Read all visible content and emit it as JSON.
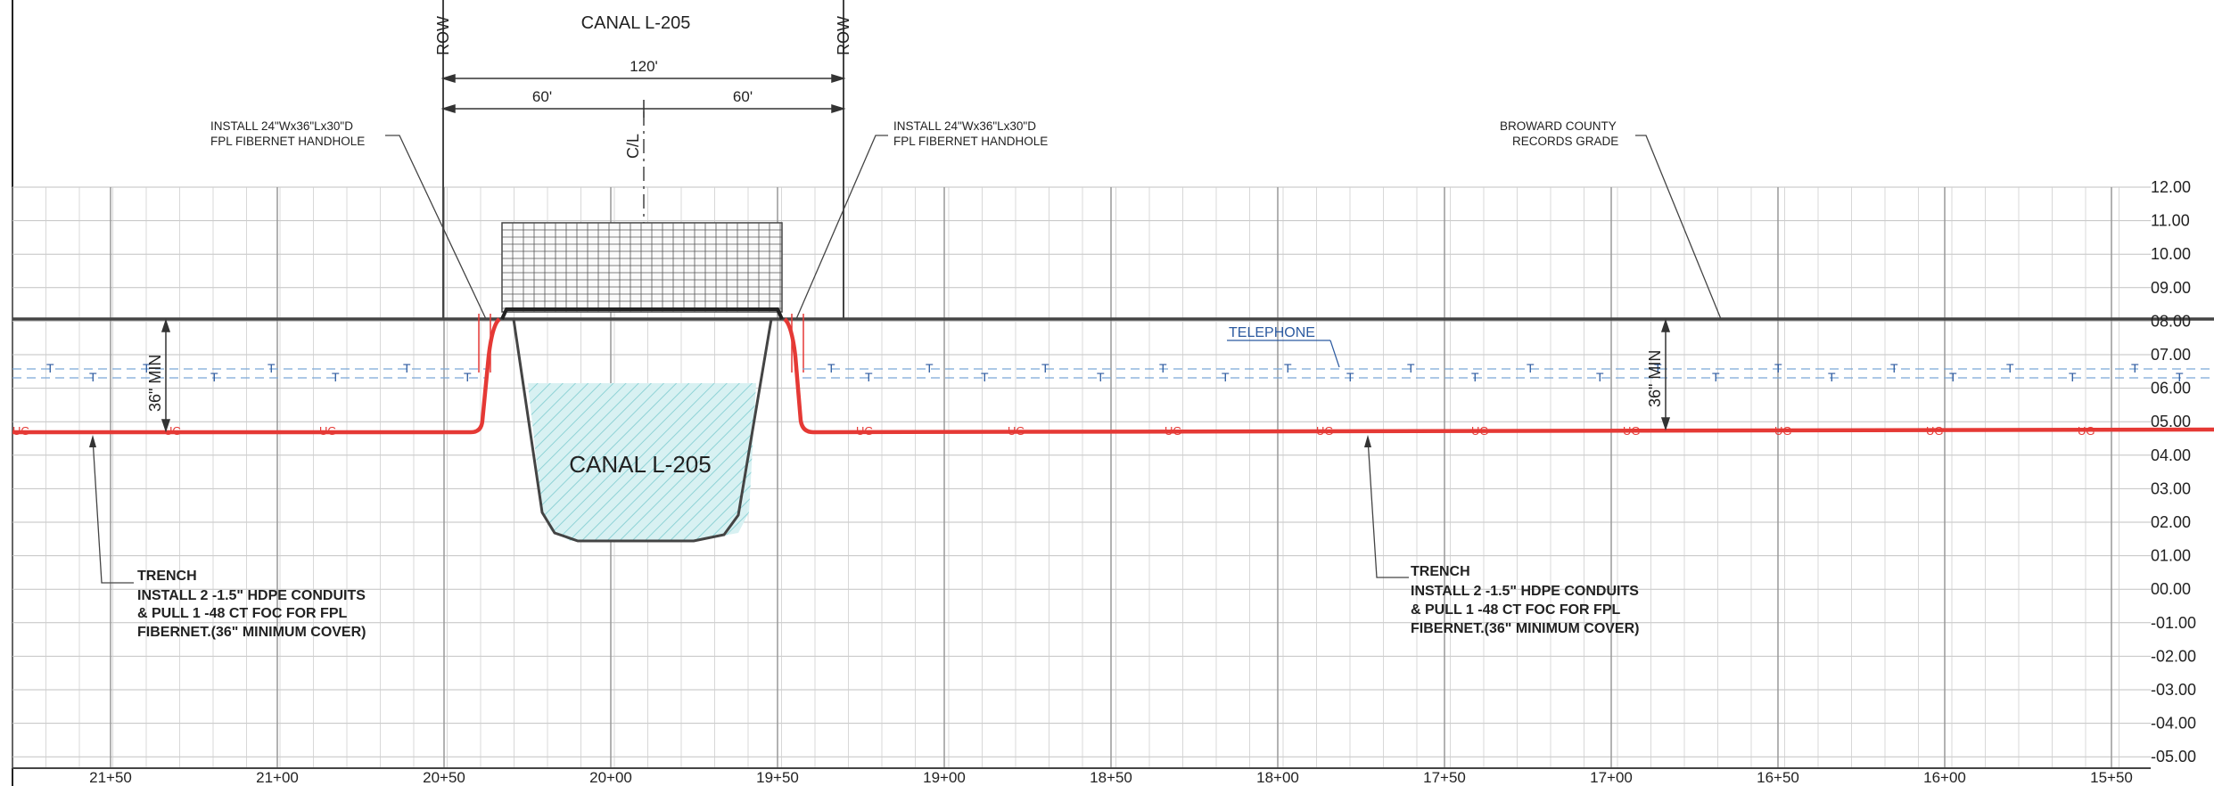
{
  "canal_title": "CANAL L-205",
  "row_left": "ROW",
  "row_right": "ROW",
  "dim_total": "120'",
  "dim_left": "60'",
  "dim_right": "60'",
  "centerline": "C/L",
  "handhole_left": [
    "INSTALL 24\"Wx36\"Lx30\"D",
    "FPL FIBERNET HANDHOLE"
  ],
  "handhole_right": [
    "INSTALL 24\"Wx36\"Lx30\"D",
    "FPL FIBERNET HANDHOLE"
  ],
  "grade_note": [
    "BROWARD COUNTY",
    "RECORDS GRADE"
  ],
  "telephone_label": "TELEPHONE",
  "canal_label": "CANAL L-205",
  "min_cover_left": "36\" MIN",
  "min_cover_right": "36\" MIN",
  "trench_left": [
    "TRENCH",
    "INSTALL  2 -1.5\" HDPE CONDUITS",
    "& PULL 1 -48   CT FOC FOR FPL",
    "FIBERNET.(36\"   MINIMUM COVER)"
  ],
  "trench_right": [
    "TRENCH",
    "INSTALL  2 -1.5\" HDPE CONDUITS",
    "& PULL 1 -48   CT FOC FOR FPL",
    "FIBERNET.(36\"   MINIMUM COVER)"
  ],
  "ug_marker": "UG",
  "telephone_marker": "T",
  "elevations": [
    "12.00",
    "11.00",
    "10.00",
    "09.00",
    "08.00",
    "07.00",
    "06.00",
    "05.00",
    "04.00",
    "03.00",
    "02.00",
    "01.00",
    "00.00",
    "-01.00",
    "-02.00",
    "-03.00",
    "-04.00",
    "-05.00"
  ],
  "stations": [
    "21+50",
    "21+00",
    "20+50",
    "20+00",
    "19+50",
    "19+00",
    "18+50",
    "18+00",
    "17+50",
    "17+00",
    "16+50",
    "16+00",
    "15+50"
  ],
  "colors": {
    "fiber": "#e53935",
    "telephone": "#2c5aa0",
    "water": "#8fd3d6",
    "grid": "#b9b9b9",
    "line": "#333333"
  }
}
